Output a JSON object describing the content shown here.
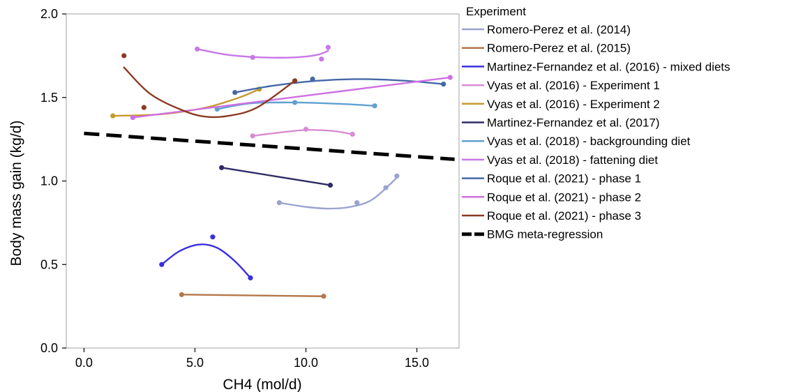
{
  "chart_data": {
    "type": "line",
    "xlabel": "CH4 (mol/d)",
    "ylabel": "Body mass gain (kg/d)",
    "xlim": [
      -0.8,
      16.9
    ],
    "ylim": [
      0.0,
      2.0
    ],
    "xticks": [
      0,
      5,
      10,
      15
    ],
    "xtick_labels": [
      "0.0",
      "5.0",
      "10.0",
      "15.0"
    ],
    "yticks": [
      0,
      0.5,
      1.0,
      1.5,
      2.0
    ],
    "ytick_labels": [
      "0.0",
      "0.5",
      "1.0",
      "1.5",
      "2.0"
    ],
    "grid": false,
    "legend_title": "Experiment",
    "legend_position": "right",
    "series": [
      {
        "name": "Romero-Perez et al. (2014)",
        "color": "#9aa3d0",
        "points": [
          [
            8.8,
            0.87
          ],
          [
            12.3,
            0.87
          ],
          [
            13.6,
            0.96
          ],
          [
            14.1,
            1.03
          ]
        ],
        "curve": [
          [
            8.8,
            0.87
          ],
          [
            10.0,
            0.845
          ],
          [
            11.0,
            0.835
          ],
          [
            12.0,
            0.845
          ],
          [
            13.0,
            0.89
          ],
          [
            14.1,
            1.02
          ]
        ]
      },
      {
        "name": "Romero-Perez et al. (2015)",
        "color": "#b4774a",
        "points": [
          [
            4.4,
            0.32
          ],
          [
            10.8,
            0.31
          ]
        ],
        "curve": [
          [
            4.4,
            0.32
          ],
          [
            10.8,
            0.31
          ]
        ]
      },
      {
        "name": "Martinez-Fernandez et al. (2016) - mixed diets",
        "color": "#3a2ee0",
        "points": [
          [
            3.5,
            0.5
          ],
          [
            5.8,
            0.665
          ],
          [
            7.5,
            0.42
          ]
        ],
        "curve": [
          [
            3.5,
            0.5
          ],
          [
            4.3,
            0.58
          ],
          [
            5.2,
            0.62
          ],
          [
            6.0,
            0.6
          ],
          [
            6.8,
            0.52
          ],
          [
            7.5,
            0.42
          ]
        ]
      },
      {
        "name": "Vyas et al. (2016) - Experiment 1",
        "color": "#d98bd2",
        "points": [
          [
            7.6,
            1.27
          ],
          [
            10.0,
            1.31
          ],
          [
            12.1,
            1.28
          ]
        ],
        "curve": [
          [
            7.6,
            1.27
          ],
          [
            8.8,
            1.29
          ],
          [
            10.0,
            1.305
          ],
          [
            11.2,
            1.3
          ],
          [
            12.1,
            1.28
          ]
        ]
      },
      {
        "name": "Vyas et al. (2016) - Experiment 2",
        "color": "#c49a2e",
        "points": [
          [
            1.3,
            1.39
          ],
          [
            7.9,
            1.55
          ]
        ],
        "curve": [
          [
            1.3,
            1.39
          ],
          [
            3.5,
            1.4
          ],
          [
            5.5,
            1.44
          ],
          [
            7.0,
            1.5
          ],
          [
            7.9,
            1.55
          ]
        ]
      },
      {
        "name": "Martinez-Fernandez et al. (2017)",
        "color": "#2e2b66",
        "points": [
          [
            6.2,
            1.08
          ],
          [
            11.1,
            0.975
          ]
        ],
        "curve": [
          [
            6.2,
            1.08
          ],
          [
            11.1,
            0.975
          ]
        ]
      },
      {
        "name": "Vyas et al. (2018) - backgrounding diet",
        "color": "#5fa1cf",
        "points": [
          [
            6.0,
            1.43
          ],
          [
            9.5,
            1.47
          ],
          [
            13.1,
            1.45
          ]
        ],
        "curve": [
          [
            6.0,
            1.43
          ],
          [
            7.5,
            1.465
          ],
          [
            9.5,
            1.47
          ],
          [
            11.5,
            1.462
          ],
          [
            13.1,
            1.45
          ]
        ]
      },
      {
        "name": "Vyas et al. (2018) - fattening diet",
        "color": "#c778e8",
        "points": [
          [
            5.1,
            1.79
          ],
          [
            7.6,
            1.74
          ],
          [
            10.7,
            1.73
          ],
          [
            11.0,
            1.8
          ]
        ],
        "curve": [
          [
            5.1,
            1.79
          ],
          [
            6.5,
            1.755
          ],
          [
            8.0,
            1.74
          ],
          [
            9.5,
            1.74
          ],
          [
            10.5,
            1.755
          ],
          [
            11.0,
            1.78
          ]
        ]
      },
      {
        "name": "Roque et al. (2021) - phase 1",
        "color": "#4568a6",
        "points": [
          [
            6.8,
            1.53
          ],
          [
            10.3,
            1.61
          ],
          [
            16.2,
            1.58
          ]
        ],
        "curve": [
          [
            6.8,
            1.53
          ],
          [
            8.5,
            1.57
          ],
          [
            10.5,
            1.6
          ],
          [
            12.5,
            1.61
          ],
          [
            14.5,
            1.6
          ],
          [
            16.2,
            1.58
          ]
        ]
      },
      {
        "name": "Roque et al. (2021) - phase 2",
        "color": "#d06fe3",
        "points": [
          [
            2.2,
            1.38
          ],
          [
            16.5,
            1.62
          ]
        ],
        "curve": [
          [
            2.2,
            1.38
          ],
          [
            16.5,
            1.62
          ]
        ]
      },
      {
        "name": "Roque et al. (2021) - phase 3",
        "color": "#8b3a22",
        "points": [
          [
            1.8,
            1.75
          ],
          [
            2.7,
            1.44
          ],
          [
            9.5,
            1.6
          ]
        ],
        "curve": [
          [
            1.8,
            1.68
          ],
          [
            3.0,
            1.52
          ],
          [
            4.5,
            1.42
          ],
          [
            5.5,
            1.385
          ],
          [
            6.5,
            1.39
          ],
          [
            7.8,
            1.44
          ],
          [
            9.5,
            1.6
          ]
        ]
      },
      {
        "name": "BMG meta-regression",
        "color": "#000000",
        "dashed": true,
        "points": [
          [
            0.0,
            1.285
          ],
          [
            16.7,
            1.13
          ]
        ],
        "curve": [
          [
            0.0,
            1.285
          ],
          [
            16.7,
            1.13
          ]
        ]
      }
    ]
  }
}
